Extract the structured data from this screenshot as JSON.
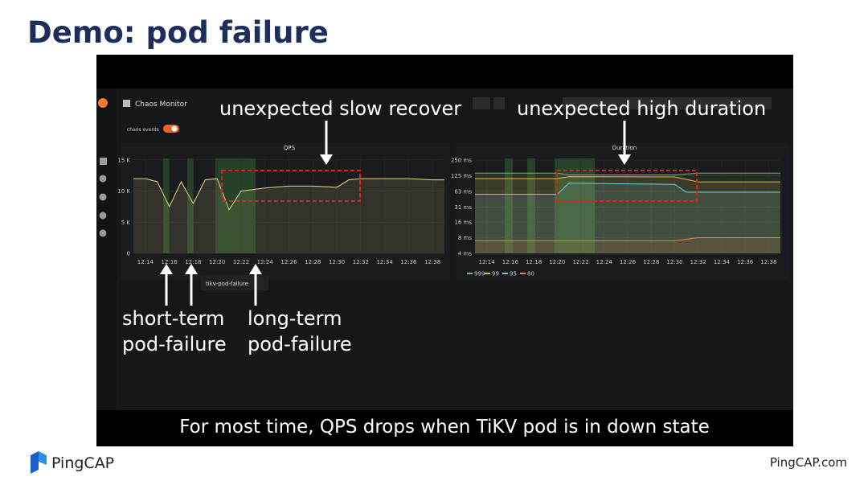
{
  "slide": {
    "title": "Demo: pod failure",
    "logo": "PingCAP",
    "footer_url": "PingCAP.com"
  },
  "screenshot": {
    "dashboard": "Chaos Monitor",
    "toggle_label": "chaos events",
    "event_label": "tikv-pod-failure",
    "annotations": {
      "slow_recover": "unexpected slow recover",
      "high_duration": "unexpected high duration",
      "short_term": [
        "short-term",
        "pod-failure"
      ],
      "long_term": [
        "long-term",
        "pod-failure"
      ]
    },
    "caption": "For most time, QPS drops when TiKV pod is in down state",
    "panels": [
      {
        "type": "line",
        "title": "QPS",
        "xlim": [
          "12:13",
          "12:39"
        ],
        "xticks": [
          "12:14",
          "12:16",
          "12:18",
          "12:20",
          "12:22",
          "12:24",
          "12:26",
          "12:28",
          "12:30",
          "12:32",
          "12:34",
          "12:36",
          "12:38"
        ],
        "ylim": [
          0,
          15500
        ],
        "yticks": [
          0,
          {
            "value": 5000,
            "label": "5 K"
          },
          {
            "value": 10000,
            "label": "10 K"
          },
          {
            "value": 15000,
            "label": "15 K"
          }
        ],
        "log": false,
        "series": [
          {
            "color": "#e5d580",
            "x": [
              "12:13",
              "12:14",
              "12:15",
              "12:16",
              "12:17",
              "12:18",
              "12:19",
              "12:20",
              "12:21",
              "12:22",
              "12:24",
              "12:26",
              "12:28",
              "12:30",
              "12:31",
              "12:32",
              "12:34",
              "12:36",
              "12:38",
              "12:39"
            ],
            "values": [
              12000,
              12000,
              11500,
              7500,
              11500,
              8000,
              11800,
              12000,
              7000,
              10000,
              10500,
              10800,
              10800,
              10600,
              11800,
              12000,
              12000,
              12000,
              11800,
              11800
            ]
          }
        ]
      },
      {
        "type": "line",
        "title": "Duration",
        "xlim": [
          "12:13",
          "12:39"
        ],
        "xticks": [
          "12:14",
          "12:16",
          "12:18",
          "12:20",
          "12:22",
          "12:24",
          "12:26",
          "12:28",
          "12:30",
          "12:32",
          "12:34",
          "12:36",
          "12:38"
        ],
        "ylim": [
          4,
          250
        ],
        "yticks": [
          {
            "value": 4,
            "label": "4 ms"
          },
          {
            "value": 8,
            "label": "8 ms"
          },
          {
            "value": 16,
            "label": "16 ms"
          },
          {
            "value": 31.25,
            "label": "31 ms"
          },
          {
            "value": 62.5,
            "label": "63 ms"
          },
          {
            "value": 125,
            "label": "125 ms"
          },
          {
            "value": 250,
            "label": "250 ms"
          }
        ],
        "log": true,
        "series": [
          {
            "name": "999",
            "color": "#7eb26d",
            "x": [
              "12:13",
              "12:20",
              "12:21",
              "12:30",
              "12:32",
              "12:39"
            ],
            "values": [
              140,
              140,
              130,
              130,
              140,
              140
            ]
          },
          {
            "name": "99",
            "color": "#eab839",
            "x": [
              "12:13",
              "12:20",
              "12:21",
              "12:30",
              "12:32",
              "12:39"
            ],
            "values": [
              110,
              110,
              120,
              118,
              95,
              95
            ]
          },
          {
            "name": "95",
            "color": "#6ed0e0",
            "x": [
              "12:13",
              "12:20",
              "12:21",
              "12:30",
              "12:31",
              "12:39"
            ],
            "values": [
              55,
              55,
              90,
              85,
              60,
              60
            ]
          },
          {
            "name": "80",
            "color": "#ef843c",
            "x": [
              "12:13",
              "12:20",
              "12:30",
              "12:32",
              "12:39"
            ],
            "values": [
              7,
              7,
              7,
              8,
              8
            ]
          }
        ]
      }
    ]
  }
}
